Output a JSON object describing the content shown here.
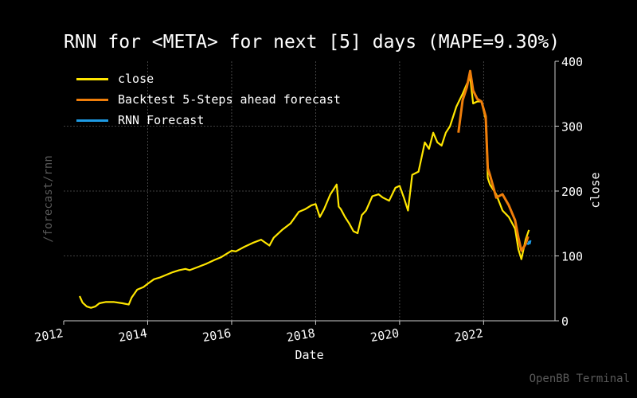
{
  "page": {
    "side_label": "/forecast/rnn",
    "watermark": "OpenBB Terminal"
  },
  "chart_data": {
    "type": "line",
    "title": "RNN for <META> for next [5] days (MAPE=9.30%)",
    "xlabel": "Date",
    "ylabel": "close",
    "xlim": [
      2012.0,
      2023.7
    ],
    "ylim": [
      0,
      400
    ],
    "x_ticks": [
      2012,
      2014,
      2016,
      2018,
      2020,
      2022
    ],
    "x_tick_labels": [
      "2012",
      "2014",
      "2016",
      "2018",
      "2020",
      "2022"
    ],
    "y_ticks": [
      0,
      100,
      200,
      300,
      400
    ],
    "y_tick_labels": [
      "0",
      "100",
      "200",
      "300",
      "400"
    ],
    "y_axis_side": "right",
    "grid": true,
    "legend": "top-left",
    "series": [
      {
        "name": "close",
        "color": "#ffe600",
        "x": [
          2012.38,
          2012.45,
          2012.55,
          2012.65,
          2012.75,
          2012.85,
          2013.0,
          2013.2,
          2013.4,
          2013.55,
          2013.62,
          2013.75,
          2013.9,
          2014.0,
          2014.15,
          2014.3,
          2014.45,
          2014.6,
          2014.75,
          2014.9,
          2015.0,
          2015.2,
          2015.4,
          2015.6,
          2015.75,
          2015.9,
          2016.0,
          2016.1,
          2016.3,
          2016.5,
          2016.7,
          2016.9,
          2017.0,
          2017.2,
          2017.4,
          2017.6,
          2017.75,
          2017.9,
          2018.0,
          2018.1,
          2018.2,
          2018.35,
          2018.5,
          2018.55,
          2018.6,
          2018.7,
          2018.8,
          2018.9,
          2019.0,
          2019.1,
          2019.2,
          2019.35,
          2019.5,
          2019.6,
          2019.75,
          2019.9,
          2020.0,
          2020.1,
          2020.2,
          2020.3,
          2020.45,
          2020.55,
          2020.6,
          2020.7,
          2020.8,
          2020.9,
          2021.0,
          2021.1,
          2021.2,
          2021.35,
          2021.5,
          2021.6,
          2021.68,
          2021.75,
          2021.85,
          2021.95,
          2022.05,
          2022.1,
          2022.15,
          2022.3,
          2022.45,
          2022.6,
          2022.75,
          2022.83,
          2022.9,
          2023.0,
          2023.08
        ],
        "y": [
          38,
          28,
          22,
          20,
          22,
          27,
          29,
          29,
          27,
          25,
          36,
          48,
          52,
          57,
          64,
          67,
          71,
          75,
          78,
          80,
          78,
          83,
          88,
          94,
          98,
          104,
          108,
          107,
          114,
          120,
          125,
          116,
          128,
          140,
          150,
          168,
          172,
          178,
          180,
          160,
          172,
          195,
          210,
          176,
          172,
          160,
          150,
          138,
          135,
          163,
          170,
          192,
          195,
          190,
          185,
          205,
          208,
          190,
          170,
          225,
          230,
          260,
          275,
          265,
          290,
          275,
          270,
          290,
          300,
          330,
          350,
          365,
          375,
          335,
          338,
          338,
          310,
          220,
          210,
          195,
          170,
          160,
          142,
          110,
          95,
          125,
          140
        ]
      },
      {
        "name": "Backtest 5-Steps ahead forecast",
        "color": "#f07e0a",
        "x": [
          2021.4,
          2021.5,
          2021.6,
          2021.68,
          2021.75,
          2021.85,
          2021.95,
          2022.05,
          2022.1,
          2022.15,
          2022.3,
          2022.45,
          2022.6,
          2022.75,
          2022.83,
          2022.9,
          2023.0,
          2023.06
        ],
        "y": [
          290,
          340,
          360,
          385,
          355,
          342,
          338,
          315,
          235,
          225,
          190,
          195,
          178,
          155,
          128,
          108,
          118,
          130
        ]
      },
      {
        "name": "RNN Forecast",
        "color": "#1e9be4",
        "x": [
          2023.04,
          2023.06,
          2023.08,
          2023.1,
          2023.12
        ],
        "y": [
          120,
          118,
          122,
          119,
          124
        ]
      }
    ]
  }
}
